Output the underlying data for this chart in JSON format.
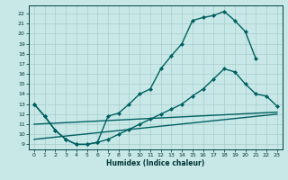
{
  "title": "",
  "xlabel": "Humidex (Indice chaleur)",
  "ylabel": "",
  "bg_color": "#c8e8e8",
  "plot_bg_color": "#c8e8e8",
  "line_color": "#006060",
  "xlim": [
    -0.5,
    23.5
  ],
  "ylim": [
    8.5,
    22.8
  ],
  "xticks": [
    0,
    1,
    2,
    3,
    4,
    5,
    6,
    7,
    8,
    9,
    10,
    11,
    12,
    13,
    14,
    15,
    16,
    17,
    18,
    19,
    20,
    21,
    22,
    23
  ],
  "yticks": [
    9,
    10,
    11,
    12,
    13,
    14,
    15,
    16,
    17,
    18,
    19,
    20,
    21,
    22
  ],
  "curve1_x": [
    0,
    1,
    2,
    3,
    4,
    5,
    6,
    7,
    8,
    9,
    10,
    11,
    12,
    13,
    14,
    15,
    16,
    17,
    18,
    19,
    20,
    21
  ],
  "curve1_y": [
    13.0,
    11.8,
    10.4,
    9.5,
    9.0,
    9.0,
    9.2,
    11.8,
    12.1,
    13.0,
    14.0,
    14.5,
    16.5,
    17.8,
    19.0,
    21.3,
    21.6,
    21.8,
    22.2,
    21.3,
    20.2,
    17.5
  ],
  "curve2_x": [
    0,
    1,
    2,
    3,
    4,
    5,
    6,
    7,
    8,
    9,
    10,
    11,
    12,
    13,
    14,
    15,
    16,
    17,
    18,
    19,
    20,
    21,
    22,
    23
  ],
  "curve2_y": [
    13.0,
    11.8,
    10.4,
    9.5,
    9.0,
    9.0,
    9.2,
    9.5,
    10.0,
    10.5,
    11.0,
    11.5,
    12.0,
    12.5,
    13.0,
    13.8,
    14.5,
    15.5,
    16.5,
    16.2,
    15.0,
    14.0,
    13.8,
    12.8
  ],
  "line1_x": [
    0,
    23
  ],
  "line1_y": [
    11.0,
    12.2
  ],
  "line2_x": [
    0,
    23
  ],
  "line2_y": [
    9.5,
    12.0
  ],
  "grid_color": "#a8cccc",
  "marker": "D",
  "markersize": 2.0,
  "linewidth": 1.0
}
